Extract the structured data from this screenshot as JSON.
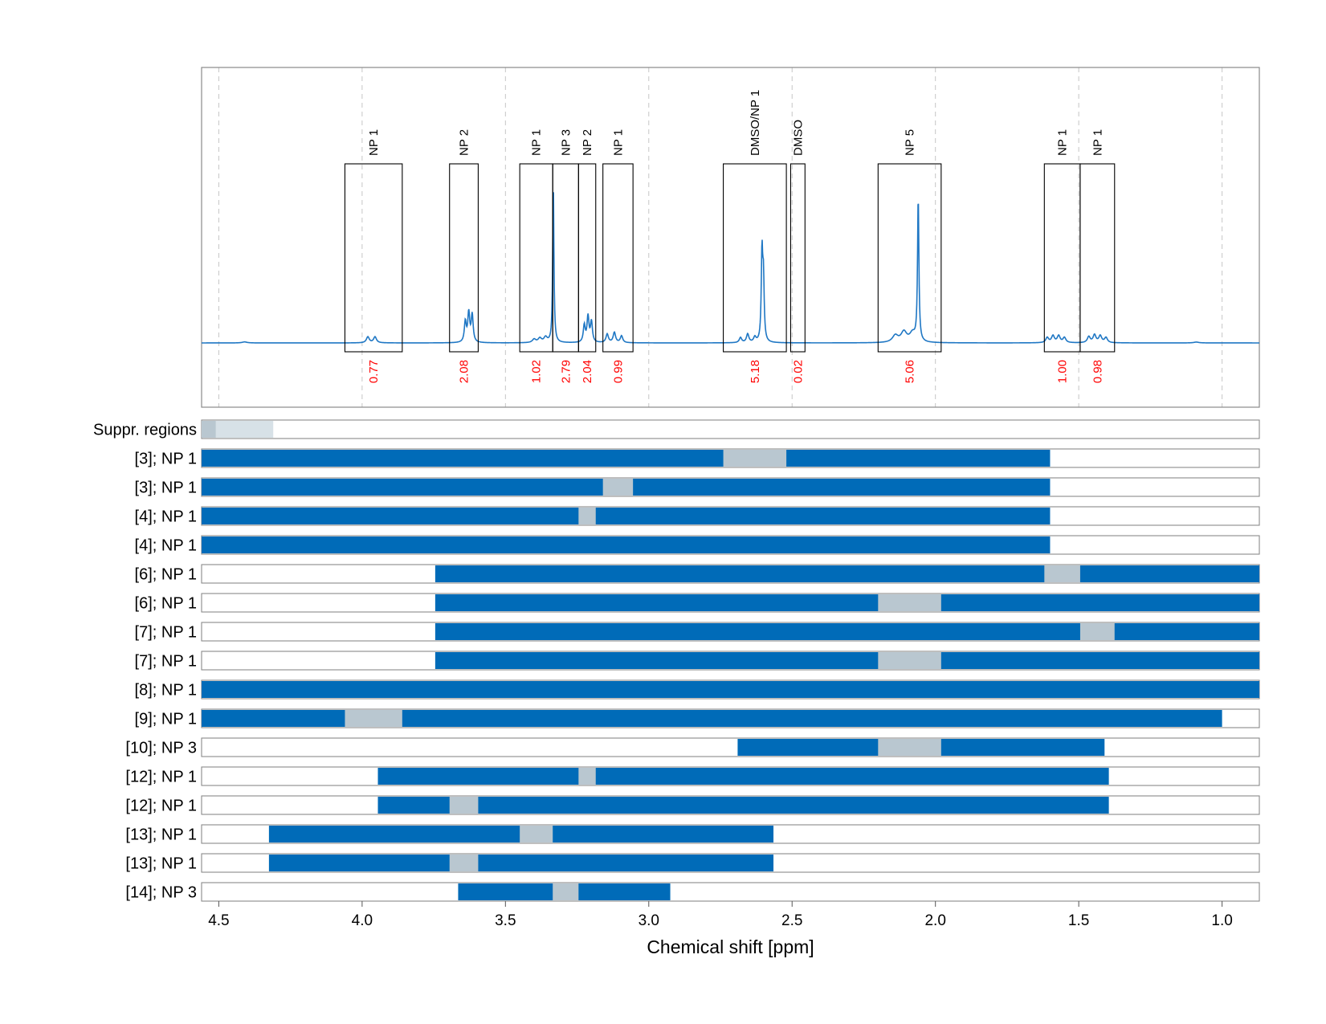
{
  "colors": {
    "spectrum": "#1f77c4",
    "bar": "#006bb8",
    "gap": "#b9c7d0",
    "suppr_dark": "#b9c7d0",
    "suppr_light": "#d7e1e7",
    "integral": "#ff0000"
  },
  "chart_data": {
    "type": "nmr_spectrum_with_region_bars",
    "xlabel": "Chemical shift [ppm]",
    "xlim": [
      4.56,
      0.87
    ],
    "x_reversed": true,
    "x_ticks": [
      {
        "v": 4.5,
        "label": "4.5"
      },
      {
        "v": 4.0,
        "label": "4.0"
      },
      {
        "v": 3.5,
        "label": "3.5"
      },
      {
        "v": 3.0,
        "label": "3.0"
      },
      {
        "v": 2.5,
        "label": "2.5"
      },
      {
        "v": 2.0,
        "label": "2.0"
      },
      {
        "v": 1.5,
        "label": "1.5"
      },
      {
        "v": 1.0,
        "label": "1.0"
      }
    ],
    "grid": "vertical dashed",
    "spectrum_peaks": [
      {
        "center": 3.98,
        "height": 0.035,
        "width": 0.006
      },
      {
        "center": 3.955,
        "height": 0.035,
        "width": 0.006
      },
      {
        "center": 3.64,
        "height": 0.12,
        "width": 0.004
      },
      {
        "center": 3.628,
        "height": 0.17,
        "width": 0.004
      },
      {
        "center": 3.616,
        "height": 0.16,
        "width": 0.004
      },
      {
        "center": 3.4,
        "height": 0.02,
        "width": 0.007
      },
      {
        "center": 3.38,
        "height": 0.025,
        "width": 0.007
      },
      {
        "center": 3.36,
        "height": 0.03,
        "width": 0.007
      },
      {
        "center": 3.333,
        "height": 0.93,
        "width": 0.0025
      },
      {
        "center": 3.225,
        "height": 0.1,
        "width": 0.004
      },
      {
        "center": 3.212,
        "height": 0.15,
        "width": 0.004
      },
      {
        "center": 3.2,
        "height": 0.12,
        "width": 0.004
      },
      {
        "center": 3.145,
        "height": 0.05,
        "width": 0.005
      },
      {
        "center": 3.12,
        "height": 0.06,
        "width": 0.005
      },
      {
        "center": 3.095,
        "height": 0.04,
        "width": 0.005
      },
      {
        "center": 2.68,
        "height": 0.03,
        "width": 0.005
      },
      {
        "center": 2.655,
        "height": 0.05,
        "width": 0.005
      },
      {
        "center": 2.63,
        "height": 0.03,
        "width": 0.005
      },
      {
        "center": 2.605,
        "height": 0.51,
        "width": 0.003
      },
      {
        "center": 2.6,
        "height": 0.35,
        "width": 0.003
      },
      {
        "center": 2.14,
        "height": 0.04,
        "width": 0.012
      },
      {
        "center": 2.11,
        "height": 0.06,
        "width": 0.012
      },
      {
        "center": 2.08,
        "height": 0.05,
        "width": 0.012
      },
      {
        "center": 2.06,
        "height": 0.84,
        "width": 0.0028
      },
      {
        "center": 1.61,
        "height": 0.03,
        "width": 0.006
      },
      {
        "center": 1.59,
        "height": 0.04,
        "width": 0.006
      },
      {
        "center": 1.57,
        "height": 0.04,
        "width": 0.006
      },
      {
        "center": 1.55,
        "height": 0.03,
        "width": 0.006
      },
      {
        "center": 1.465,
        "height": 0.035,
        "width": 0.006
      },
      {
        "center": 1.445,
        "height": 0.045,
        "width": 0.006
      },
      {
        "center": 1.425,
        "height": 0.04,
        "width": 0.006
      },
      {
        "center": 1.405,
        "height": 0.03,
        "width": 0.006
      },
      {
        "center": 4.41,
        "height": 0.006,
        "width": 0.01
      },
      {
        "center": 1.09,
        "height": 0.005,
        "width": 0.01
      }
    ],
    "peak_regions": [
      {
        "label": "NP 1",
        "start": 4.06,
        "end": 3.86,
        "integral": "0.77"
      },
      {
        "label": "NP 2",
        "start": 3.695,
        "end": 3.595,
        "integral": "2.08"
      },
      {
        "label": "NP 1",
        "start": 3.45,
        "end": 3.335,
        "integral": "1.02"
      },
      {
        "label": "NP 3",
        "start": 3.335,
        "end": 3.245,
        "integral": "2.79"
      },
      {
        "label": "NP 2",
        "start": 3.245,
        "end": 3.185,
        "integral": "2.04"
      },
      {
        "label": "NP 1",
        "start": 3.16,
        "end": 3.055,
        "integral": "0.99"
      },
      {
        "label": "DMSO/NP 1",
        "start": 2.74,
        "end": 2.52,
        "integral": "5.18"
      },
      {
        "label": "DMSO",
        "start": 2.505,
        "end": 2.455,
        "integral": "0.02"
      },
      {
        "label": "NP 5",
        "start": 2.2,
        "end": 1.98,
        "integral": "5.06"
      },
      {
        "label": "NP 1",
        "start": 1.62,
        "end": 1.495,
        "integral": "1.00"
      },
      {
        "label": "NP 1",
        "start": 1.495,
        "end": 1.375,
        "integral": "0.98"
      }
    ],
    "rows": [
      {
        "label": "Suppr. regions",
        "type": "suppr",
        "segments": [
          [
            4.56,
            4.51,
            "dark"
          ],
          [
            4.51,
            4.31,
            "light"
          ]
        ]
      },
      {
        "label": "[3]; NP 1",
        "range": [
          4.56,
          1.6
        ],
        "gaps": [
          [
            2.74,
            2.52
          ]
        ]
      },
      {
        "label": "[3]; NP 1",
        "range": [
          4.56,
          1.6
        ],
        "gaps": [
          [
            3.16,
            3.055
          ]
        ]
      },
      {
        "label": "[4]; NP 1",
        "range": [
          4.56,
          1.6
        ],
        "gaps": [
          [
            3.245,
            3.185
          ]
        ]
      },
      {
        "label": "[4]; NP 1",
        "range": [
          4.56,
          1.6
        ],
        "gaps": []
      },
      {
        "label": "[6]; NP 1",
        "range": [
          3.745,
          0.87
        ],
        "gaps": [
          [
            1.62,
            1.495
          ]
        ]
      },
      {
        "label": "[6]; NP 1",
        "range": [
          3.745,
          0.87
        ],
        "gaps": [
          [
            2.2,
            1.98
          ]
        ]
      },
      {
        "label": "[7]; NP 1",
        "range": [
          3.745,
          0.87
        ],
        "gaps": [
          [
            1.495,
            1.375
          ]
        ]
      },
      {
        "label": "[7]; NP 1",
        "range": [
          3.745,
          0.87
        ],
        "gaps": [
          [
            2.2,
            1.98
          ]
        ]
      },
      {
        "label": "[8]; NP 1",
        "range": [
          4.56,
          0.87
        ],
        "gaps": []
      },
      {
        "label": "[9]; NP 1",
        "range": [
          4.56,
          1.0
        ],
        "gaps": [
          [
            4.06,
            3.86
          ]
        ]
      },
      {
        "label": "[10]; NP 3",
        "range": [
          2.69,
          1.41
        ],
        "gaps": [
          [
            2.2,
            1.98
          ]
        ]
      },
      {
        "label": "[12]; NP 1",
        "range": [
          3.945,
          1.395
        ],
        "gaps": [
          [
            3.245,
            3.185
          ]
        ]
      },
      {
        "label": "[12]; NP 1",
        "range": [
          3.945,
          1.395
        ],
        "gaps": [
          [
            3.695,
            3.595
          ]
        ]
      },
      {
        "label": "[13]; NP 1",
        "range": [
          4.325,
          2.565
        ],
        "gaps": [
          [
            3.45,
            3.335
          ]
        ]
      },
      {
        "label": "[13]; NP 1",
        "range": [
          4.325,
          2.565
        ],
        "gaps": [
          [
            3.695,
            3.595
          ]
        ]
      },
      {
        "label": "[14]; NP 3",
        "range": [
          3.665,
          2.925
        ],
        "gaps": [
          [
            3.335,
            3.245
          ]
        ]
      }
    ]
  }
}
